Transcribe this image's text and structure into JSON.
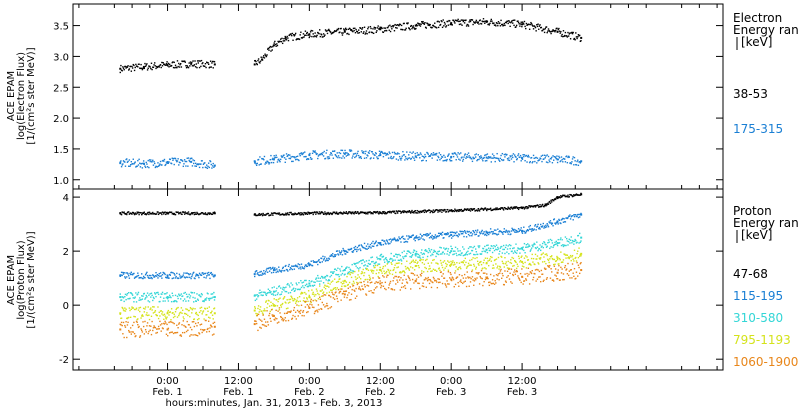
{
  "chart_data": [
    {
      "type": "scatter",
      "panel": "electron",
      "ylabel_lines": [
        "ACE EPAM",
        "log(Electron Flux)",
        "[1/(cm²s ster MeV)]"
      ],
      "ylim": [
        0.85,
        3.85
      ],
      "yticks": [
        1.0,
        1.5,
        2.0,
        2.5,
        3.0,
        3.5
      ],
      "ytick_labels": [
        "1.0",
        "1.5",
        "2.0",
        "2.5",
        "3.0",
        "3.5"
      ],
      "grid": false,
      "legend_title_lines": [
        "Electron",
        "Energy ran",
        "[keV]"
      ],
      "legend_placement": "right",
      "data_gap": [
        8,
        14.75
      ],
      "series": [
        {
          "name": "38-53",
          "color": "#000000",
          "x": [
            -8,
            -4,
            0,
            4,
            8,
            14.75,
            16,
            18,
            20,
            24,
            30,
            36,
            42,
            48,
            54,
            60,
            66,
            70
          ],
          "y": [
            2.8,
            2.83,
            2.86,
            2.88,
            2.87,
            2.87,
            2.95,
            3.18,
            3.3,
            3.36,
            3.4,
            3.44,
            3.5,
            3.54,
            3.56,
            3.52,
            3.4,
            3.3
          ]
        },
        {
          "name": "175-315",
          "color": "#1a7fd4",
          "x": [
            -8,
            -4,
            0,
            4,
            8,
            14.75,
            18,
            24,
            30,
            36,
            42,
            48,
            54,
            60,
            66,
            70
          ],
          "y": [
            1.27,
            1.26,
            1.28,
            1.29,
            1.23,
            1.3,
            1.33,
            1.4,
            1.42,
            1.4,
            1.38,
            1.37,
            1.36,
            1.35,
            1.33,
            1.3
          ]
        }
      ]
    },
    {
      "type": "scatter",
      "panel": "proton",
      "ylabel_lines": [
        "ACE EPAM",
        "log(Proton Flux)",
        "[1/(cm²s ster MeV)]"
      ],
      "ylim": [
        -2.4,
        4.3
      ],
      "yticks": [
        -2,
        0,
        2,
        4
      ],
      "ytick_labels": [
        "-2",
        "0",
        "2",
        "4"
      ],
      "grid": false,
      "legend_title_lines": [
        "Proton",
        "Energy ran",
        "[keV]"
      ],
      "legend_placement": "right",
      "data_gap": [
        8,
        14.75
      ],
      "series": [
        {
          "name": "47-68",
          "color": "#000000",
          "x": [
            -8,
            0,
            8,
            14.75,
            24,
            36,
            48,
            60,
            64,
            66,
            70
          ],
          "y": [
            3.4,
            3.4,
            3.4,
            3.35,
            3.4,
            3.42,
            3.5,
            3.6,
            3.7,
            4.0,
            4.1
          ]
        },
        {
          "name": "115-195",
          "color": "#1a7fd4",
          "x": [
            -8,
            0,
            8,
            14.75,
            18,
            24,
            30,
            36,
            42,
            48,
            54,
            60,
            66,
            70
          ],
          "y": [
            1.1,
            1.1,
            1.1,
            1.15,
            1.3,
            1.5,
            2.0,
            2.3,
            2.5,
            2.6,
            2.7,
            2.75,
            3.1,
            3.35
          ]
        },
        {
          "name": "310-580",
          "color": "#33d6d6",
          "x": [
            -8,
            0,
            8,
            14.75,
            18,
            24,
            30,
            36,
            42,
            48,
            54,
            60,
            66,
            70
          ],
          "y": [
            0.3,
            0.3,
            0.3,
            0.35,
            0.5,
            0.8,
            1.3,
            1.7,
            1.9,
            2.0,
            2.05,
            2.1,
            2.3,
            2.5
          ]
        },
        {
          "name": "795-1193",
          "color": "#d4e31a",
          "x": [
            -8,
            0,
            8,
            14.75,
            18,
            24,
            30,
            36,
            42,
            48,
            54,
            60,
            66,
            70
          ],
          "y": [
            -0.3,
            -0.3,
            -0.3,
            -0.2,
            0.0,
            0.3,
            0.9,
            1.3,
            1.45,
            1.5,
            1.55,
            1.6,
            1.75,
            1.9
          ]
        },
        {
          "name": "1060-1900",
          "color": "#e8861a",
          "x": [
            -8,
            0,
            8,
            14.75,
            18,
            24,
            30,
            36,
            42,
            48,
            54,
            60,
            66,
            70
          ],
          "y": [
            -0.9,
            -0.9,
            -0.8,
            -0.7,
            -0.4,
            -0.1,
            0.4,
            0.8,
            0.9,
            0.95,
            1.0,
            1.05,
            1.2,
            1.3
          ]
        }
      ]
    }
  ],
  "x_axis": {
    "xlim": [
      -16,
      94
    ],
    "ticks": [
      0,
      12,
      24,
      36,
      48,
      60
    ],
    "tick_labels_time": [
      "0:00",
      "12:00",
      "0:00",
      "12:00",
      "0:00",
      "12:00"
    ],
    "tick_labels_date": [
      "Feb. 1",
      "Feb. 1",
      "Feb. 2",
      "Feb. 2",
      "Feb. 3",
      "Feb. 3"
    ],
    "label": "hours:minutes, Jan. 31, 2013 - Feb.  3, 2013"
  }
}
